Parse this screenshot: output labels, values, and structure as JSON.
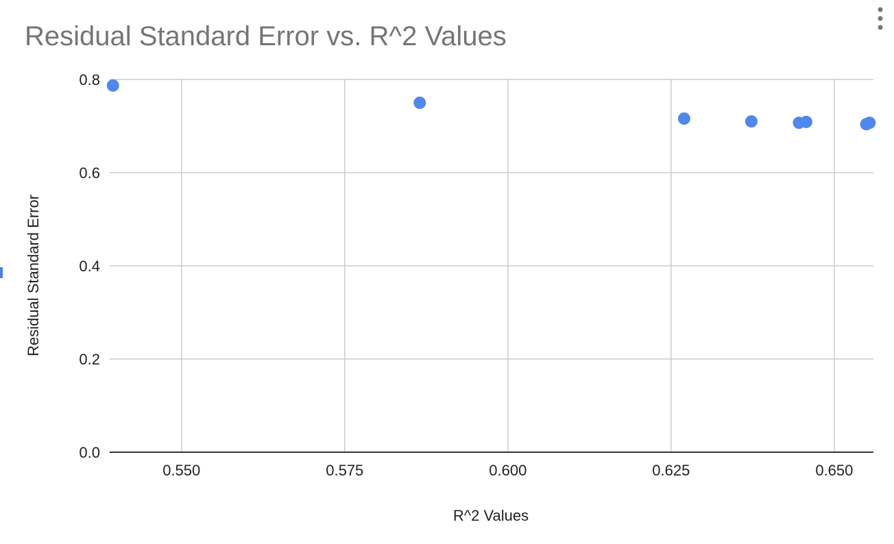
{
  "colors": {
    "point": "#5087ec",
    "title": "#757575",
    "grid": "#cccccc",
    "edge_marker": "#4a80e8"
  },
  "menu": {
    "icon": "more-vert-icon"
  },
  "chart_data": {
    "type": "scatter",
    "title": "Residual Standard Error vs. R^2 Values",
    "xlabel": "R^2 Values",
    "ylabel": "Residual Standard Error",
    "xlim": [
      0.539,
      0.656
    ],
    "ylim": [
      0.0,
      0.8
    ],
    "x_ticks": [
      "0.550",
      "0.575",
      "0.600",
      "0.625",
      "0.650"
    ],
    "y_ticks": [
      "0.0",
      "0.2",
      "0.4",
      "0.6",
      "0.8"
    ],
    "grid": true,
    "legend": "none",
    "points": [
      {
        "x": 0.5395,
        "y": 0.787
      },
      {
        "x": 0.5865,
        "y": 0.75
      },
      {
        "x": 0.627,
        "y": 0.716
      },
      {
        "x": 0.6373,
        "y": 0.71
      },
      {
        "x": 0.6446,
        "y": 0.707
      },
      {
        "x": 0.6457,
        "y": 0.709
      },
      {
        "x": 0.6549,
        "y": 0.704
      },
      {
        "x": 0.6554,
        "y": 0.707
      }
    ]
  }
}
